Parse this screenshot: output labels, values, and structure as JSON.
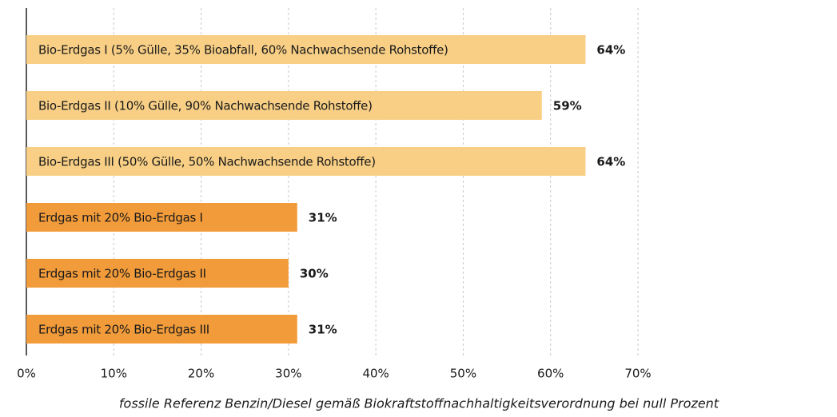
{
  "chart_data": {
    "type": "barh",
    "categories": [
      "Bio-Erdgas I (5% Gülle, 35% Bioabfall, 60% Nachwachsende Rohstoffe)",
      "Bio-Erdgas II (10% Gülle, 90% Nachwachsende Rohstoffe)",
      "Bio-Erdgas III (50% Gülle, 50% Nachwachsende Rohstoffe)",
      "Erdgas mit 20% Bio-Erdgas I",
      "Erdgas mit 20% Bio-Erdgas II",
      "Erdgas mit 20% Bio-Erdgas III"
    ],
    "values": [
      64,
      59,
      64,
      31,
      30,
      31
    ],
    "value_labels": [
      "64%",
      "59%",
      "64%",
      "31%",
      "30%",
      "31%"
    ],
    "colors": [
      "#f8cf85",
      "#f8cf85",
      "#f8cf85",
      "#f29b3a",
      "#f29b3a",
      "#f29b3a"
    ],
    "xlim": [
      0,
      70
    ],
    "xticks": [
      {
        "value": 0,
        "label": "0%"
      },
      {
        "value": 10,
        "label": "10%"
      },
      {
        "value": 20,
        "label": "20%"
      },
      {
        "value": 30,
        "label": "30%"
      },
      {
        "value": 40,
        "label": "40%"
      },
      {
        "value": 50,
        "label": "50%"
      },
      {
        "value": 60,
        "label": "60%"
      },
      {
        "value": 70,
        "label": "70%"
      }
    ],
    "xlabel": "fossile Referenz Benzin/Diesel gemäß Biokraftstoffnachhaltigkeitsverordnung bei null Prozent",
    "grid": true
  }
}
